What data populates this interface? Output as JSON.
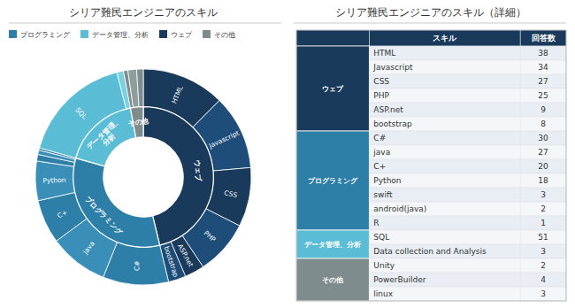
{
  "chart_data": [
    {
      "type": "donut",
      "title": "シリア難民エンジニアのスキル",
      "legend": "upper left",
      "legend_entries": [
        {
          "name": "プログラミング",
          "color": "#2e7fa8"
        },
        {
          "name": "データ管理、分析",
          "color": "#5bbcd6"
        },
        {
          "name": "ウェブ",
          "color": "#1a3a5c"
        },
        {
          "name": "その他",
          "color": "#7f8c8d"
        }
      ],
      "series": [
        {
          "categories": [
            "HTML",
            "Javascript",
            "CSS",
            "PHP",
            "ASP.net",
            "bootstrap",
            "C#",
            "java",
            "C+",
            "Python",
            null,
            null,
            null,
            "SQL",
            null,
            null,
            null,
            null
          ],
          "values": [
            38,
            34,
            27,
            25,
            9,
            8,
            30,
            27,
            20,
            18,
            3,
            2,
            1,
            51,
            3,
            2,
            4,
            3
          ],
          "colors": [
            "#1a3a5c",
            "#1e4d7a",
            "#1a3a5c",
            "#1e4d7a",
            "#1a3a5c",
            "#1e4d7a",
            "#2e7fa8",
            "#3a8fb8",
            "#2e7fa8",
            "#3a8fb8",
            "#2e7fa8",
            "#3a8fb8",
            "#2e7fa8",
            "#5bbcd6",
            "#7acfe0",
            "#7f8c8d",
            "#8f9c9d",
            "#7f8c8d"
          ]
        },
        {
          "categories": [
            "ウェブ",
            "プログラミング",
            "データ管理、\n分析",
            "その他"
          ],
          "values": [
            141,
            101,
            54,
            9
          ],
          "colors": [
            "#1a3a5c",
            "#2e7fa8",
            "#5bbcd6",
            "#7f8c8d"
          ]
        }
      ]
    },
    {
      "type": "table",
      "title": "シリア難民エンジニアのスキル（詳細）",
      "color": "#1a3a5c",
      "columns": [
        "スキル",
        "回答数"
      ],
      "groups": [
        {
          "name": "ウェブ",
          "color": "#1a3a5c"
        },
        {
          "name": "プログラミング",
          "color": "#2e7fa8"
        },
        {
          "name": "データ管理、分析",
          "color": "#5bbcd6"
        },
        {
          "name": "その他",
          "color": "#7f8c8d"
        }
      ],
      "rows": [
        {
          "category": "ウェブ",
          "skill": "HTML",
          "count": 38
        },
        {
          "category": "ウェブ",
          "skill": "Javascript",
          "count": 34
        },
        {
          "category": "ウェブ",
          "skill": "CSS",
          "count": 27
        },
        {
          "category": "ウェブ",
          "skill": "PHP",
          "count": 25
        },
        {
          "category": "ウェブ",
          "skill": "ASP.net",
          "count": 9
        },
        {
          "category": "ウェブ",
          "skill": "bootstrap",
          "count": 8
        },
        {
          "category": "プログラミング",
          "skill": "C#",
          "count": 30
        },
        {
          "category": "プログラミング",
          "skill": "java",
          "count": 27
        },
        {
          "category": "プログラミング",
          "skill": "C+",
          "count": 20
        },
        {
          "category": "プログラミング",
          "skill": "Python",
          "count": 18
        },
        {
          "category": "プログラミング",
          "skill": "swift",
          "count": 3
        },
        {
          "category": "プログラミング",
          "skill": "android(java)",
          "count": 2
        },
        {
          "category": "プログラミング",
          "skill": "R",
          "count": 1
        },
        {
          "category": "データ管理、分析",
          "skill": "SQL",
          "count": 51
        },
        {
          "category": "データ管理、分析",
          "skill": "Data collection and Analysis",
          "count": 3
        },
        {
          "category": "その他",
          "skill": "Unity",
          "count": 2
        },
        {
          "category": "その他",
          "skill": "PowerBuilder",
          "count": 4
        },
        {
          "category": "その他",
          "skill": "linux",
          "count": 3
        }
      ]
    }
  ]
}
